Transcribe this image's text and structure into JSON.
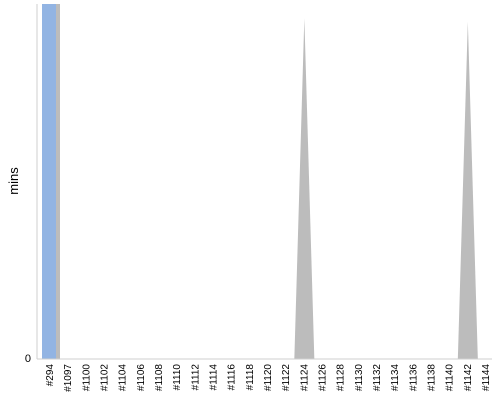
{
  "chart_data": {
    "type": "area",
    "ylabel": "mins",
    "y_tick_labels": [
      "0"
    ],
    "ylim": [
      0,
      1
    ],
    "grid": false,
    "categories": [
      "#294",
      "#1097",
      "#1100",
      "#1102",
      "#1104",
      "#1106",
      "#1108",
      "#1110",
      "#1112",
      "#1114",
      "#1116",
      "#1118",
      "#1120",
      "#1122",
      "#1124",
      "#1126",
      "#1128",
      "#1130",
      "#1132",
      "#1134",
      "#1136",
      "#1138",
      "#1140",
      "#1142",
      "#1144"
    ],
    "series": [
      {
        "color": "#bcbcbc",
        "values": [
          1.0,
          0.0,
          0,
          0,
          0,
          0,
          0,
          0,
          0,
          0,
          0,
          0,
          0,
          0,
          0.96,
          0,
          0,
          0,
          0,
          0,
          0,
          0,
          0,
          0.95,
          0
        ]
      },
      {
        "color": "#92b4e3",
        "values": [
          1.0,
          null,
          null,
          null,
          null,
          null,
          null,
          null,
          null,
          null,
          null,
          null,
          null,
          null,
          null,
          null,
          null,
          null,
          null,
          null,
          null,
          null,
          null,
          null,
          null
        ]
      }
    ]
  }
}
